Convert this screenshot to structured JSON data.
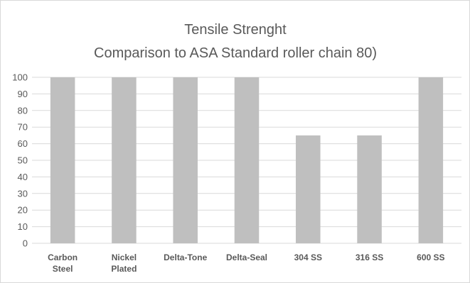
{
  "chart_data": {
    "type": "bar",
    "title": "Tensile Strenght",
    "subtitle": "Comparison to ASA Standard roller chain 80)",
    "categories": [
      [
        "Carbon",
        "Steel"
      ],
      [
        "Nickel",
        "Plated"
      ],
      [
        "Delta-Tone"
      ],
      [
        "Delta-Seal"
      ],
      [
        "304 SS"
      ],
      [
        "316 SS"
      ],
      [
        "600 SS"
      ]
    ],
    "values": [
      100,
      100,
      100,
      100,
      65,
      65,
      100
    ],
    "ylim": [
      0,
      100
    ],
    "yticks": [
      0,
      10,
      20,
      30,
      40,
      50,
      60,
      70,
      80,
      90,
      100
    ],
    "grid": true,
    "legend": "none",
    "bar_color": "#bfbfbf",
    "grid_color": "#d9d9d9"
  }
}
